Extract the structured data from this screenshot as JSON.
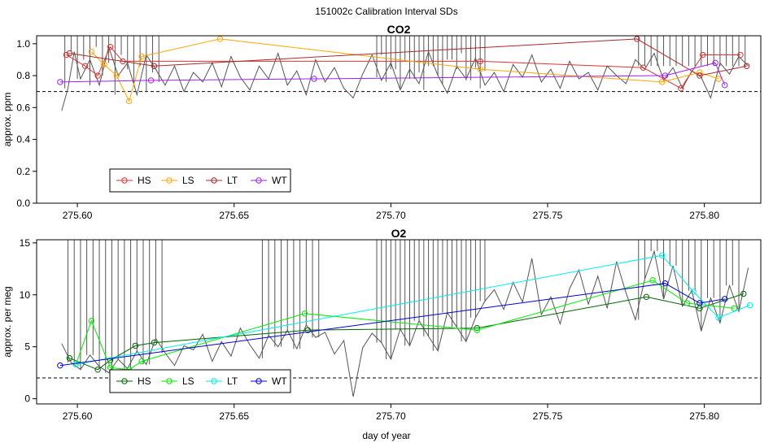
{
  "title": "151002c   Calibration Interval SDs",
  "x_axis": {
    "label": "day of year",
    "ticks": [
      275.6,
      275.65,
      275.7,
      275.75,
      275.8
    ],
    "tick_labels": [
      "275.60",
      "275.65",
      "275.70",
      "275.75",
      "275.80"
    ]
  },
  "colors": {
    "HS_co2": "#dd3333",
    "LS_co2": "#ffa500",
    "LT_co2": "#a52a2a",
    "WT_co2": "#a020f0",
    "HS_o2": "#006400",
    "LS_o2": "#00ee00",
    "LT_o2": "#00eeee",
    "WT_o2": "#0000cd",
    "trace": "#555555",
    "threshold": "#000000"
  },
  "chart_data": [
    {
      "type": "line",
      "title": "CO2",
      "ylabel": "approx. ppm",
      "xlim": [
        275.587,
        275.818
      ],
      "ylim": [
        0.0,
        1.05
      ],
      "yticks": [
        0.0,
        0.2,
        0.4,
        0.6,
        0.8,
        1.0
      ],
      "ytick_labels": [
        "0.0",
        "0.2",
        "0.4",
        "0.6",
        "0.8",
        "1.0"
      ],
      "threshold": 0.7,
      "legend": {
        "position": "bottom-left",
        "entries": [
          "HS",
          "LS",
          "LT",
          "WT"
        ]
      },
      "trace": {
        "x": [
          275.595,
          275.597,
          275.599,
          275.601,
          275.604,
          275.607,
          275.61,
          275.613,
          275.616,
          275.619,
          275.622,
          275.625,
          275.628,
          275.631,
          275.634,
          275.637,
          275.64,
          275.643,
          275.646,
          275.649,
          275.652,
          275.655,
          275.658,
          275.661,
          275.664,
          275.667,
          275.67,
          275.673,
          275.676,
          275.679,
          275.682,
          275.685,
          275.688,
          275.691,
          275.694,
          275.697,
          275.7,
          275.703,
          275.706,
          275.709,
          275.712,
          275.715,
          275.718,
          275.721,
          275.724,
          275.727,
          275.73,
          275.733,
          275.736,
          275.739,
          275.742,
          275.745,
          275.748,
          275.751,
          275.754,
          275.757,
          275.76,
          275.763,
          275.766,
          275.769,
          275.772,
          275.775,
          275.778,
          275.781,
          275.784,
          275.787,
          275.79,
          275.793,
          275.796,
          275.799,
          275.802,
          275.805,
          275.808,
          275.811,
          275.814
        ],
        "y": [
          0.58,
          0.72,
          0.95,
          0.78,
          0.9,
          0.74,
          0.98,
          0.8,
          0.88,
          0.68,
          0.93,
          0.84,
          0.74,
          0.86,
          0.7,
          0.82,
          0.76,
          0.88,
          0.73,
          0.92,
          0.79,
          0.71,
          0.86,
          0.78,
          0.94,
          0.74,
          0.83,
          0.68,
          0.9,
          0.76,
          0.85,
          0.72,
          0.66,
          0.81,
          0.93,
          0.77,
          0.88,
          0.71,
          0.84,
          0.75,
          0.95,
          0.8,
          0.69,
          0.86,
          0.78,
          0.91,
          0.74,
          0.82,
          0.7,
          0.87,
          0.79,
          0.93,
          0.76,
          0.84,
          0.72,
          0.89,
          0.78,
          0.82,
          0.71,
          0.86,
          0.8,
          0.75,
          0.9,
          0.84,
          0.94,
          0.77,
          0.85,
          0.72,
          0.83,
          0.79,
          0.66,
          0.88,
          0.81,
          0.92,
          0.86
        ]
      },
      "spike_x": [
        275.596,
        275.598,
        275.6,
        275.602,
        275.604,
        275.606,
        275.608,
        275.61,
        275.612,
        275.614,
        275.616,
        275.618,
        275.62,
        275.622,
        275.624,
        275.626,
        275.6955,
        275.697,
        275.6985,
        275.7,
        275.7015,
        275.703,
        275.7045,
        275.706,
        275.7075,
        275.709,
        275.7105,
        275.712,
        275.7135,
        275.715,
        275.7165,
        275.718,
        275.7195,
        275.721,
        275.7225,
        275.724,
        275.7255,
        275.727,
        275.7285,
        275.73,
        275.779,
        275.781,
        275.783,
        275.785,
        275.787,
        275.789,
        275.791,
        275.793,
        275.795,
        275.797,
        275.799,
        275.801,
        275.803,
        275.805,
        275.807,
        275.809,
        275.811,
        275.813
      ],
      "series": [
        {
          "name": "HS",
          "x": [
            275.5965,
            275.6025,
            275.6065,
            275.6105,
            275.6145,
            275.7285,
            275.7805,
            275.7925,
            275.7995,
            275.8115
          ],
          "y": [
            0.93,
            0.86,
            0.8,
            0.98,
            0.89,
            0.89,
            0.85,
            0.72,
            0.93,
            0.93
          ]
        },
        {
          "name": "LS",
          "x": [
            275.6045,
            275.6085,
            275.6125,
            275.6165,
            275.6205,
            275.6455,
            275.7285,
            275.7865,
            275.7985,
            275.8045
          ],
          "y": [
            0.95,
            0.87,
            0.8,
            0.64,
            0.92,
            1.03,
            0.84,
            0.76,
            0.82,
            0.78
          ]
        },
        {
          "name": "LT",
          "x": [
            275.5975,
            275.6245,
            275.7785,
            275.7985,
            275.8135
          ],
          "y": [
            0.94,
            0.86,
            1.03,
            0.8,
            0.86
          ]
        },
        {
          "name": "WT",
          "x": [
            275.5945,
            275.6235,
            275.6755,
            275.7875,
            275.8035,
            275.8065
          ],
          "y": [
            0.76,
            0.77,
            0.78,
            0.8,
            0.88,
            0.74
          ]
        }
      ]
    },
    {
      "type": "line",
      "title": "O2",
      "ylabel": "approx. per meg",
      "xlabel": "day of year",
      "xlim": [
        275.587,
        275.818
      ],
      "ylim": [
        -0.5,
        15.3
      ],
      "yticks": [
        0,
        5,
        10,
        15
      ],
      "ytick_labels": [
        "0",
        "5",
        "10",
        "15"
      ],
      "threshold": 2.0,
      "legend": {
        "position": "bottom-left",
        "entries": [
          "HS",
          "LS",
          "LT",
          "WT"
        ]
      },
      "trace": {
        "x": [
          275.595,
          275.598,
          275.601,
          275.604,
          275.607,
          275.61,
          275.613,
          275.616,
          275.619,
          275.622,
          275.625,
          275.628,
          275.631,
          275.634,
          275.637,
          275.64,
          275.643,
          275.646,
          275.649,
          275.652,
          275.655,
          275.658,
          275.661,
          275.664,
          275.667,
          275.67,
          275.673,
          275.676,
          275.679,
          275.682,
          275.685,
          275.688,
          275.691,
          275.694,
          275.697,
          275.7,
          275.703,
          275.706,
          275.709,
          275.712,
          275.715,
          275.718,
          275.721,
          275.724,
          275.727,
          275.73,
          275.733,
          275.736,
          275.739,
          275.742,
          275.745,
          275.748,
          275.751,
          275.754,
          275.757,
          275.76,
          275.763,
          275.766,
          275.769,
          275.772,
          275.775,
          275.778,
          275.781,
          275.784,
          275.787,
          275.79,
          275.793,
          275.796,
          275.799,
          275.802,
          275.805,
          275.808,
          275.811,
          275.814
        ],
        "y": [
          5.3,
          3.5,
          2.8,
          4.2,
          3.1,
          2.5,
          3.8,
          2.9,
          4.6,
          3.3,
          5.8,
          4.4,
          3.2,
          5.1,
          4.7,
          6.2,
          3.6,
          5.5,
          4.1,
          6.8,
          5.2,
          3.9,
          6.1,
          5.0,
          6.6,
          4.8,
          7.1,
          5.9,
          6.4,
          4.3,
          5.6,
          0.2,
          4.9,
          6.3,
          5.4,
          3.8,
          6.7,
          5.1,
          7.5,
          6.0,
          4.6,
          8.3,
          6.9,
          5.5,
          7.8,
          9.4,
          10.5,
          8.6,
          11.2,
          9.3,
          13.5,
          8.1,
          9.8,
          7.2,
          10.6,
          12.4,
          9.1,
          11.8,
          8.7,
          13.2,
          10.2,
          7.6,
          11.5,
          14.2,
          9.6,
          12.8,
          8.9,
          10.4,
          6.5,
          9.7,
          7.3,
          10.9,
          8.4,
          12.6
        ]
      },
      "spike_x": [
        275.597,
        275.599,
        275.601,
        275.603,
        275.605,
        275.607,
        275.609,
        275.611,
        275.613,
        275.615,
        275.617,
        275.619,
        275.621,
        275.623,
        275.625,
        275.627,
        275.659,
        275.661,
        275.663,
        275.665,
        275.667,
        275.669,
        275.671,
        275.673,
        275.675,
        275.677,
        275.6955,
        275.697,
        275.6985,
        275.7,
        275.7015,
        275.703,
        275.7045,
        275.706,
        275.7075,
        275.709,
        275.7105,
        275.712,
        275.7135,
        275.715,
        275.7165,
        275.718,
        275.7195,
        275.721,
        275.7225,
        275.724,
        275.7255,
        275.727,
        275.7285,
        275.73,
        275.779,
        275.781,
        275.783,
        275.785,
        275.787,
        275.789,
        275.791,
        275.793,
        275.795,
        275.797,
        275.799,
        275.801,
        275.803,
        275.805,
        275.807,
        275.809,
        275.811
      ],
      "series": [
        {
          "name": "HS",
          "x": [
            275.5975,
            275.6065,
            275.6105,
            275.6185,
            275.6245,
            275.6735,
            275.7275,
            275.7815,
            275.7985,
            275.8125
          ],
          "y": [
            3.9,
            2.8,
            3.7,
            5.1,
            5.4,
            6.6,
            6.8,
            9.8,
            8.7,
            10.1
          ]
        },
        {
          "name": "LS",
          "x": [
            275.5995,
            275.6045,
            275.6105,
            275.6165,
            275.6205,
            275.6725,
            275.7275,
            275.7835,
            275.7945,
            275.8095
          ],
          "y": [
            3.3,
            7.5,
            3.0,
            2.8,
            3.6,
            8.2,
            6.6,
            11.4,
            9.2,
            8.7
          ]
        },
        {
          "name": "LT",
          "x": [
            275.5995,
            275.7865,
            275.7965,
            275.8045,
            275.8145
          ],
          "y": [
            3.3,
            13.8,
            10.3,
            7.8,
            9.0
          ]
        },
        {
          "name": "WT",
          "x": [
            275.5945,
            275.7875,
            275.7985,
            275.8065
          ],
          "y": [
            3.2,
            11.1,
            9.2,
            9.6
          ]
        }
      ]
    }
  ]
}
